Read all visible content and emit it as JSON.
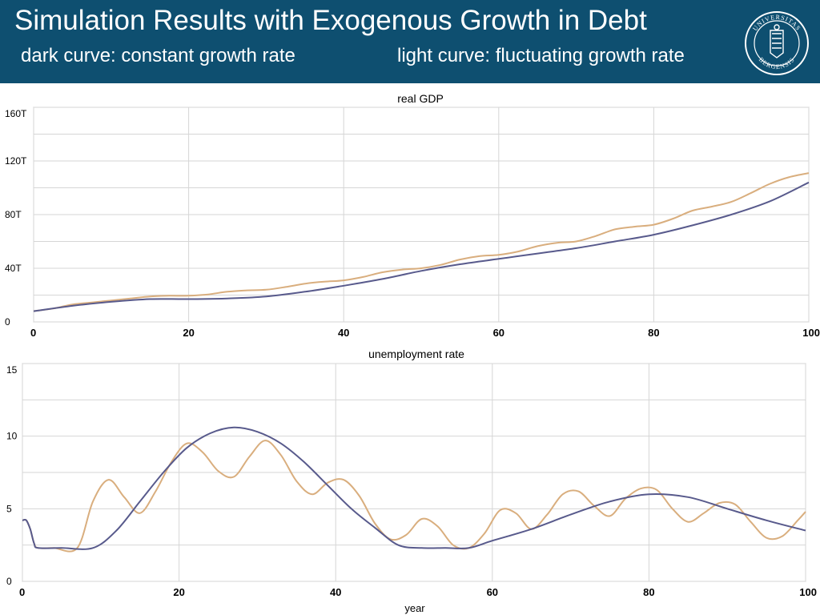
{
  "slide": {
    "title": "Simulation Results with Exogenous Growth in Debt",
    "subtitle_left": "dark curve: constant growth rate",
    "subtitle_right": "light curve: fluctuating growth rate",
    "logo_text": "UNIVERSITAS BERGENSIS"
  },
  "colors": {
    "banner": "#0e4f70",
    "dark_curve": "#585a8c",
    "light_curve": "#d9ae7e",
    "grid": "#d6d6d6",
    "text": "#000000"
  },
  "chart_data": [
    {
      "type": "line",
      "title": "real GDP",
      "xlabel": "",
      "ylabel": "",
      "xlim": [
        0,
        100
      ],
      "ylim": [
        0,
        160
      ],
      "xticks": [
        0,
        20,
        40,
        60,
        80,
        100
      ],
      "yticks": [
        0,
        40,
        80,
        120,
        160
      ],
      "ytick_labels": [
        "0",
        "40T",
        "80T",
        "120T",
        "160T"
      ],
      "grid": true,
      "series": [
        {
          "style": "dark",
          "x": [
            0,
            5,
            10,
            15,
            20,
            25,
            30,
            35,
            40,
            45,
            50,
            55,
            60,
            65,
            70,
            75,
            80,
            85,
            90,
            95,
            100
          ],
          "y": [
            8,
            12,
            15,
            17,
            17,
            17.5,
            19,
            22.5,
            27,
            32,
            38,
            43,
            47,
            51,
            55,
            60,
            65,
            72,
            80,
            90,
            104
          ]
        },
        {
          "style": "light",
          "x": [
            0,
            2.5,
            5,
            7.5,
            10,
            12.5,
            15,
            17.5,
            20,
            22.5,
            25,
            27.5,
            30,
            32.5,
            35,
            37.5,
            40,
            42.5,
            45,
            47.5,
            50,
            52.5,
            55,
            57.5,
            60,
            62.5,
            65,
            67.5,
            70,
            72.5,
            75,
            77.5,
            80,
            82.5,
            85,
            87.5,
            90,
            92.5,
            95,
            97.5,
            100
          ],
          "y": [
            8,
            10,
            13,
            14.5,
            16,
            17.5,
            19,
            19.5,
            19.5,
            20.5,
            22.5,
            23.5,
            24,
            26,
            28.5,
            30,
            31,
            33.5,
            37,
            39,
            40,
            42.5,
            46.5,
            49,
            50,
            52.5,
            56.5,
            59,
            60,
            64,
            69,
            71,
            72.5,
            77,
            83,
            86,
            89.5,
            96,
            103,
            108,
            111
          ]
        }
      ]
    },
    {
      "type": "line",
      "title": "unemployment rate",
      "xlabel": "year",
      "ylabel": "",
      "xlim": [
        0,
        100
      ],
      "ylim": [
        0,
        15
      ],
      "xticks": [
        0,
        20,
        40,
        60,
        80,
        100
      ],
      "yticks": [
        0,
        5,
        10,
        15
      ],
      "ytick_labels": [
        "0",
        "5",
        "10",
        "15"
      ],
      "grid": true,
      "series": [
        {
          "style": "dark",
          "x": [
            0,
            0.5,
            1,
            1.5,
            2,
            5,
            9,
            12,
            15,
            18,
            21,
            24,
            27,
            30,
            33,
            36,
            39,
            42,
            45,
            48,
            51,
            54,
            57,
            60,
            65,
            70,
            75,
            80,
            85,
            90,
            95,
            100
          ],
          "y": [
            4.2,
            4.2,
            3.6,
            2.6,
            2.3,
            2.3,
            2.3,
            3.5,
            5.5,
            7.5,
            9.2,
            10.2,
            10.6,
            10.3,
            9.5,
            8.2,
            6.6,
            5.0,
            3.7,
            2.5,
            2.3,
            2.3,
            2.3,
            2.8,
            3.6,
            4.6,
            5.5,
            6.0,
            5.8,
            5.0,
            4.2,
            3.5
          ]
        },
        {
          "style": "light",
          "x": [
            0,
            0.5,
            1,
            1.5,
            2,
            4,
            7,
            9,
            11,
            13,
            15,
            17,
            19,
            21,
            23,
            25,
            27,
            29,
            31,
            33,
            35,
            37,
            39,
            41,
            43,
            45,
            47,
            49,
            51,
            53,
            55,
            57,
            59,
            61,
            63,
            65,
            67,
            69,
            71,
            73,
            75,
            77,
            79,
            81,
            83,
            85,
            87,
            89,
            91,
            93,
            95,
            97,
            99,
            100
          ],
          "y": [
            4.2,
            4.2,
            3.6,
            2.6,
            2.3,
            2.3,
            2.3,
            5.5,
            7.0,
            5.8,
            4.7,
            6.2,
            8.2,
            9.5,
            8.9,
            7.6,
            7.2,
            8.6,
            9.7,
            8.7,
            6.9,
            6.0,
            6.8,
            7.0,
            5.9,
            4.0,
            2.9,
            3.2,
            4.3,
            3.8,
            2.5,
            2.3,
            3.3,
            4.9,
            4.7,
            3.6,
            4.6,
            6.0,
            6.2,
            5.2,
            4.5,
            5.7,
            6.4,
            6.3,
            5.0,
            4.1,
            4.7,
            5.4,
            5.3,
            4.1,
            3.0,
            3.1,
            4.2,
            4.8
          ]
        }
      ]
    }
  ]
}
